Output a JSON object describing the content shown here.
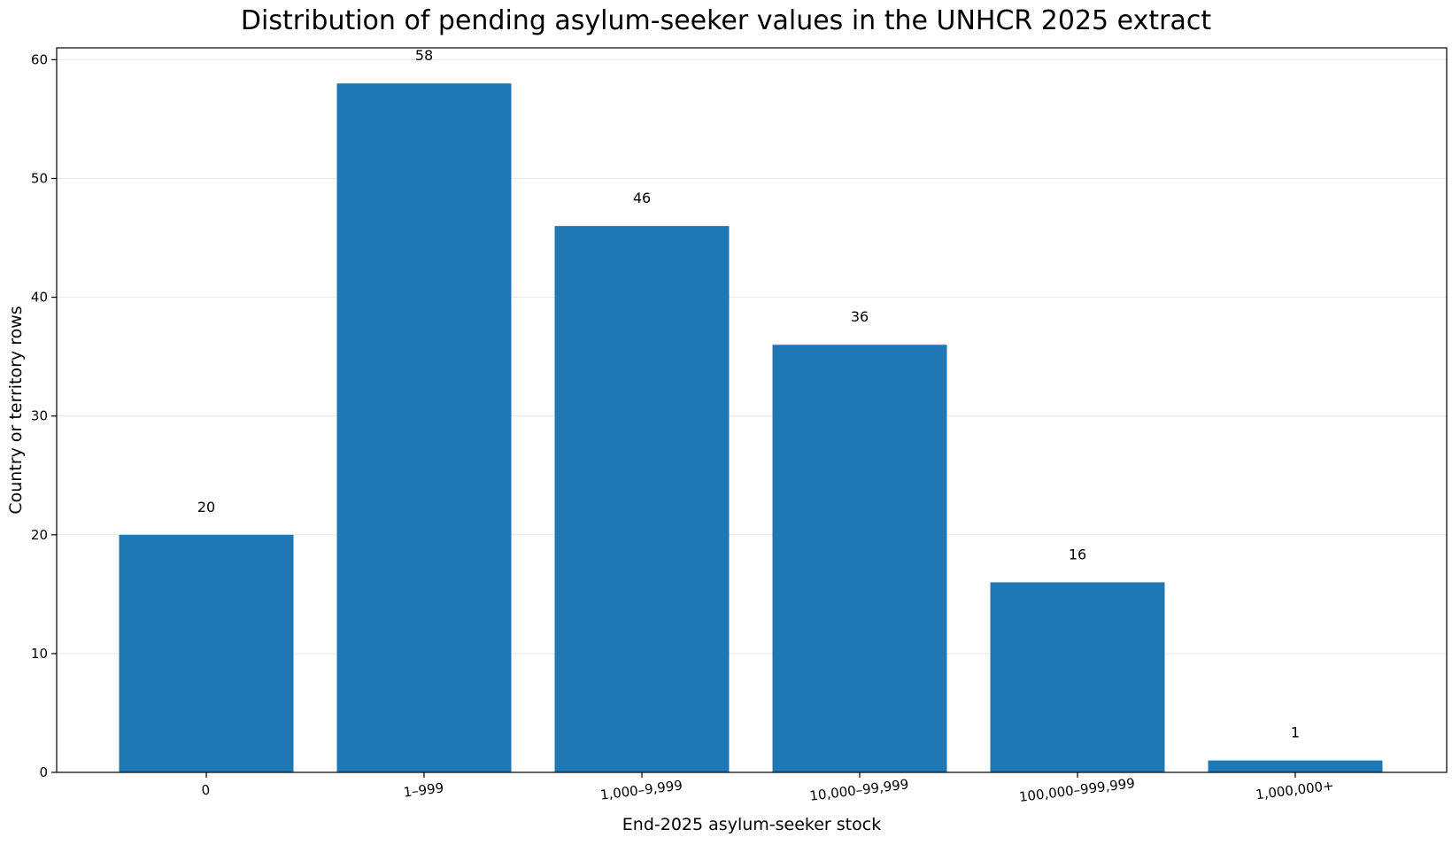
{
  "chart_data": {
    "type": "bar",
    "title": "Distribution of pending asylum-seeker values in the UNHCR 2025 extract",
    "xlabel": "End-2025 asylum-seeker stock",
    "ylabel": "Country or territory rows",
    "categories": [
      "0",
      "1–999",
      "1,000–9,999",
      "10,000–99,999",
      "100,000–999,999",
      "1,000,000+"
    ],
    "values": [
      20,
      58,
      46,
      36,
      16,
      1
    ],
    "data_labels": [
      "20",
      "58",
      "46",
      "36",
      "16",
      "1"
    ],
    "ylim": [
      0,
      61
    ],
    "yticks": [
      0,
      10,
      20,
      30,
      40,
      50,
      60
    ],
    "ytick_labels": [
      "0",
      "10",
      "20",
      "30",
      "40",
      "50",
      "60"
    ],
    "grid": "horizontal",
    "legend": "none",
    "bar_color": "#1f77b4"
  }
}
